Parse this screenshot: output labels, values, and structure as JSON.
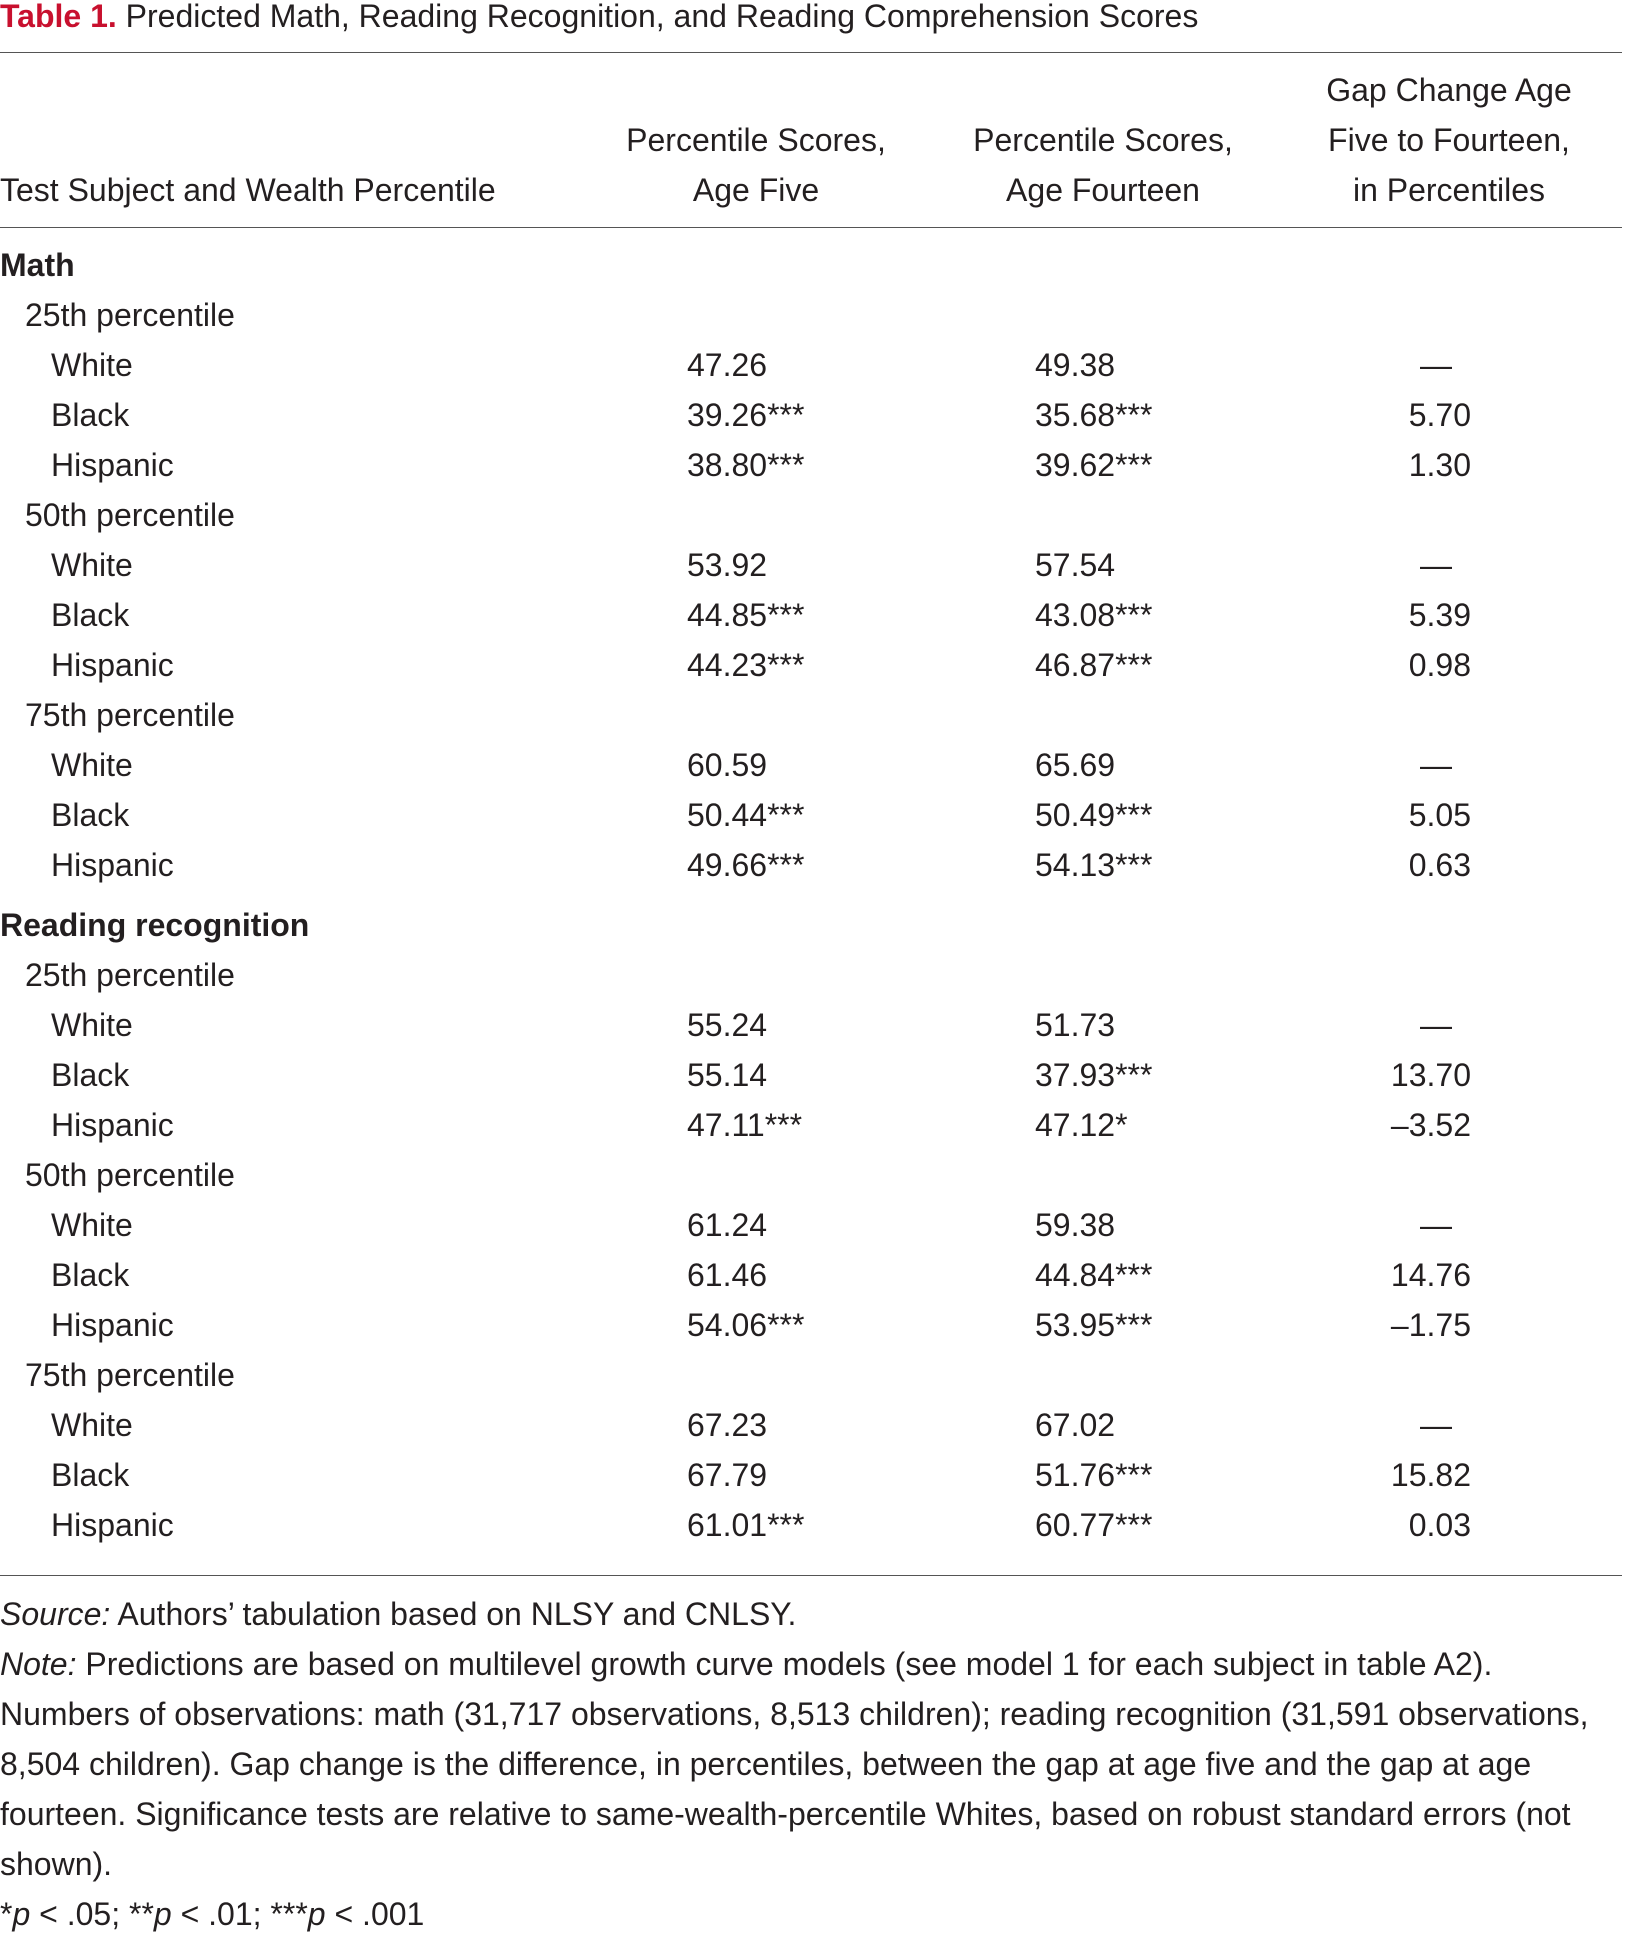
{
  "title": {
    "label": "Table 1.",
    "text": "Predicted Math, Reading Recognition, and Reading Comprehension Scores"
  },
  "header": {
    "columns": [
      [
        "Test Subject and Wealth Percentile"
      ],
      [
        "Percentile Scores,",
        "Age Five"
      ],
      [
        "Percentile Scores,",
        "Age Fourteen"
      ],
      [
        "Gap Change Age",
        "Five to Fourteen,",
        "in Percentiles"
      ]
    ]
  },
  "table": {
    "sections": [
      {
        "label": "Math",
        "groups": [
          {
            "label": "25th percentile",
            "rows": [
              [
                "White",
                "47.26",
                "49.38",
                "—"
              ],
              [
                "Black",
                "39.26***",
                "35.68***",
                "5.70"
              ],
              [
                "Hispanic",
                "38.80***",
                "39.62***",
                "1.30"
              ]
            ]
          },
          {
            "label": "50th percentile",
            "rows": [
              [
                "White",
                "53.92",
                "57.54",
                "—"
              ],
              [
                "Black",
                "44.85***",
                "43.08***",
                "5.39"
              ],
              [
                "Hispanic",
                "44.23***",
                "46.87***",
                "0.98"
              ]
            ]
          },
          {
            "label": "75th percentile",
            "rows": [
              [
                "White",
                "60.59",
                "65.69",
                "—"
              ],
              [
                "Black",
                "50.44***",
                "50.49***",
                "5.05"
              ],
              [
                "Hispanic",
                "49.66***",
                "54.13***",
                "0.63"
              ]
            ]
          }
        ]
      },
      {
        "label": "Reading recognition",
        "groups": [
          {
            "label": "25th percentile",
            "rows": [
              [
                "White",
                "55.24",
                "51.73",
                "—"
              ],
              [
                "Black",
                "55.14",
                "37.93***",
                "13.70"
              ],
              [
                "Hispanic",
                "47.11***",
                "47.12*",
                "–3.52"
              ]
            ]
          },
          {
            "label": "50th percentile",
            "rows": [
              [
                "White",
                "61.24",
                "59.38",
                "—"
              ],
              [
                "Black",
                "61.46",
                "44.84***",
                "14.76"
              ],
              [
                "Hispanic",
                "54.06***",
                "53.95***",
                "–1.75"
              ]
            ]
          },
          {
            "label": "75th percentile",
            "rows": [
              [
                "White",
                "67.23",
                "67.02",
                "—"
              ],
              [
                "Black",
                "67.79",
                "51.76***",
                "15.82"
              ],
              [
                "Hispanic",
                "61.01***",
                "60.77***",
                "0.03"
              ]
            ]
          }
        ]
      }
    ]
  },
  "notes": {
    "source": {
      "label": "Source:",
      "text": " Authors’ tabulation based on NLSY and CNLSY."
    },
    "note": {
      "label": "Note:",
      "text": " Predictions are based on multilevel growth curve models (see model 1 for each subject in table A2). Numbers of observations: math (31,717 observations, 8,513 children); reading recognition (31,591 observations, 8,504 children). Gap change is the difference, in percentiles, between the gap at age five and the gap at age fourteen. Significance tests are relative to same-wealth-percentile Whites, based on robust standard errors (not shown)."
    },
    "footnote": [
      "*",
      "p",
      " < .05; **",
      "p",
      " < .01; ***",
      "p",
      " < .001"
    ]
  }
}
